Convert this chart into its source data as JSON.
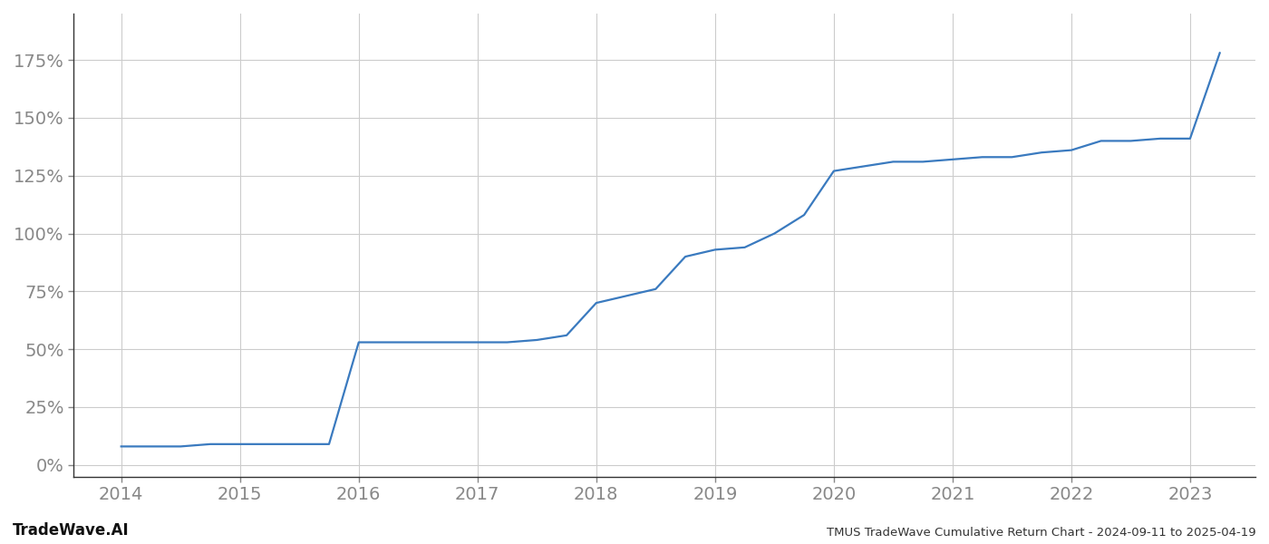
{
  "title": "TMUS TradeWave Cumulative Return Chart - 2024-09-11 to 2025-04-19",
  "watermark": "TradeWave.AI",
  "line_color": "#3a7abf",
  "background_color": "#ffffff",
  "grid_color": "#cccccc",
  "text_color": "#888888",
  "spine_color": "#333333",
  "x_values": [
    2014.0,
    2014.25,
    2014.5,
    2014.75,
    2015.0,
    2015.25,
    2015.5,
    2015.75,
    2016.0,
    2016.25,
    2016.5,
    2016.75,
    2017.0,
    2017.25,
    2017.5,
    2017.75,
    2018.0,
    2018.25,
    2018.5,
    2018.75,
    2019.0,
    2019.25,
    2019.5,
    2019.75,
    2020.0,
    2020.25,
    2020.5,
    2020.75,
    2021.0,
    2021.25,
    2021.5,
    2021.75,
    2022.0,
    2022.25,
    2022.5,
    2022.75,
    2023.0,
    2023.25
  ],
  "y_values": [
    8,
    8,
    8,
    9,
    9,
    9,
    9,
    9,
    53,
    53,
    53,
    53,
    53,
    53,
    54,
    56,
    70,
    73,
    76,
    90,
    93,
    94,
    100,
    108,
    127,
    129,
    131,
    131,
    132,
    133,
    133,
    135,
    136,
    140,
    140,
    141,
    141,
    178
  ],
  "yticks": [
    0,
    25,
    50,
    75,
    100,
    125,
    150,
    175
  ],
  "xticks": [
    2014,
    2015,
    2016,
    2017,
    2018,
    2019,
    2020,
    2021,
    2022,
    2023
  ],
  "ylim": [
    -5,
    195
  ],
  "xlim": [
    2013.6,
    2023.55
  ],
  "tick_labelsize": 14,
  "line_width": 1.6,
  "footer_title_fontsize": 9.5,
  "footer_watermark_fontsize": 12
}
